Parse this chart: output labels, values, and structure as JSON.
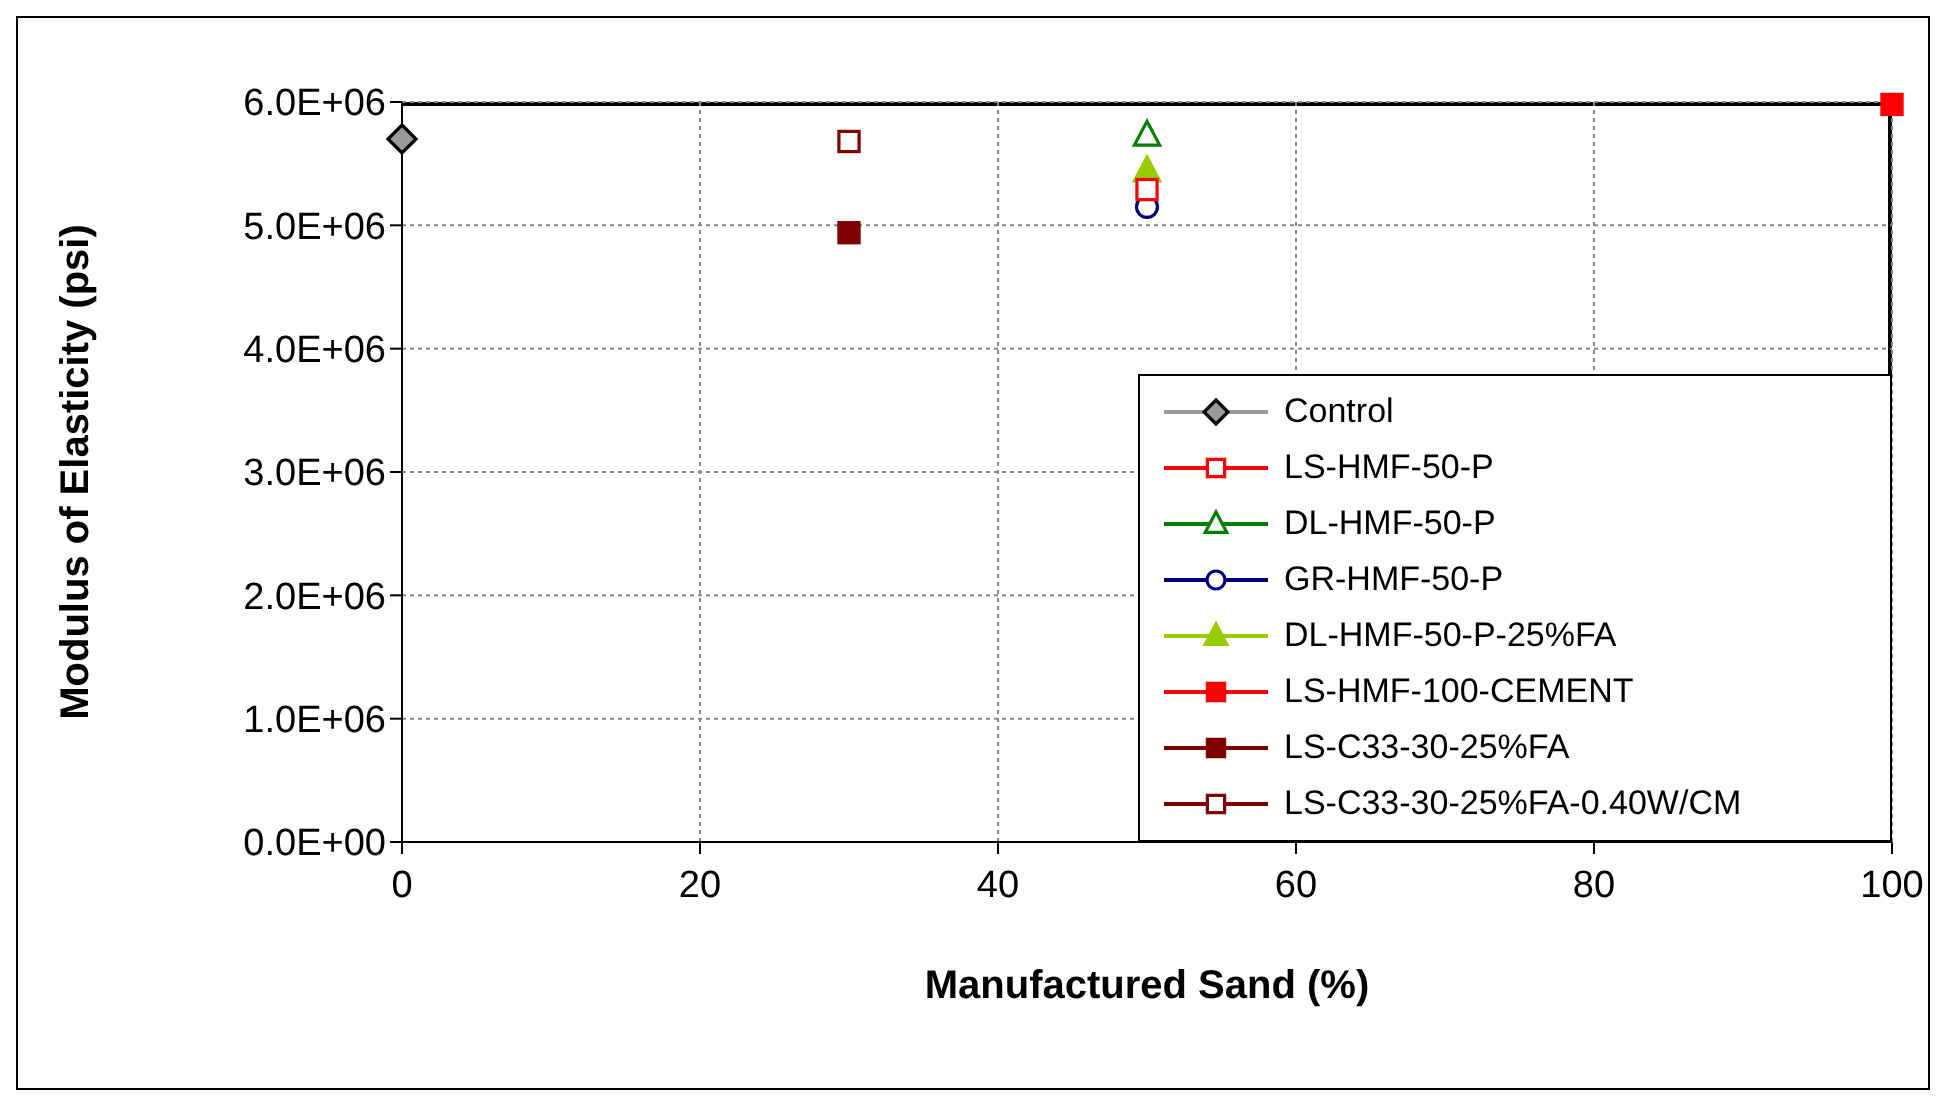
{
  "chart_data": {
    "type": "scatter",
    "xlabel": "Manufactured Sand (%)",
    "ylabel": "Modulus of Elasticity (psi)",
    "xlim": [
      0,
      100
    ],
    "xticks": [
      0,
      20,
      40,
      60,
      80,
      100
    ],
    "ylim": [
      0,
      6000000
    ],
    "yticks": [
      {
        "value": 0,
        "label": "0.0E+00"
      },
      {
        "value": 1000000,
        "label": "1.0E+06"
      },
      {
        "value": 2000000,
        "label": "2.0E+06"
      },
      {
        "value": 3000000,
        "label": "3.0E+06"
      },
      {
        "value": 4000000,
        "label": "4.0E+06"
      },
      {
        "value": 5000000,
        "label": "5.0E+06"
      },
      {
        "value": 6000000,
        "label": "6.0E+06"
      }
    ],
    "grid": true,
    "legend": "bottom right",
    "series": [
      {
        "name": "Control",
        "color": "#999999",
        "marker": "diamond",
        "x": [
          0
        ],
        "values": [
          5700000
        ]
      },
      {
        "name": "LS-HMF-50-P",
        "color": "#ff0000",
        "marker": "square-open",
        "x": [
          50
        ],
        "values": [
          5290000
        ]
      },
      {
        "name": "DL-HMF-50-P",
        "color": "#008000",
        "marker": "triangle-open",
        "x": [
          50
        ],
        "values": [
          5730000
        ]
      },
      {
        "name": "GR-HMF-50-P",
        "color": "#000080",
        "marker": "circle-open",
        "x": [
          50
        ],
        "values": [
          5150000
        ]
      },
      {
        "name": "DL-HMF-50-P-25%FA",
        "color": "#99cc00",
        "marker": "triangle",
        "x": [
          50
        ],
        "values": [
          5440000
        ]
      },
      {
        "name": "LS-HMF-100-CEMENT",
        "color": "#ff0000",
        "marker": "square",
        "x": [
          100
        ],
        "values": [
          5980000
        ]
      },
      {
        "name": "LS-C33-30-25%FA",
        "color": "#800000",
        "marker": "square",
        "x": [
          30
        ],
        "values": [
          4940000
        ]
      },
      {
        "name": "LS-C33-30-25%FA-0.40W/CM",
        "color": "#800000",
        "marker": "square-open",
        "x": [
          30
        ],
        "values": [
          5680000
        ]
      }
    ]
  }
}
